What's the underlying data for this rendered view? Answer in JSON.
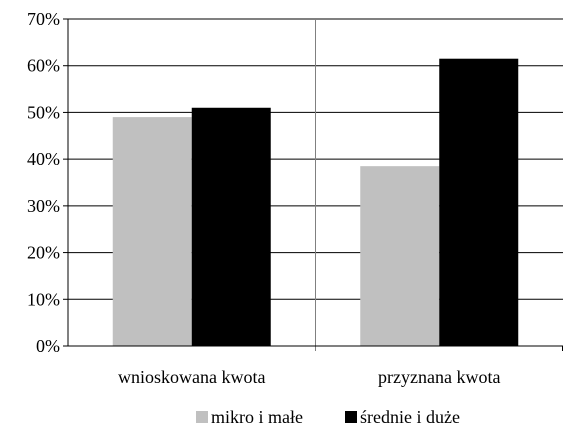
{
  "chart_data": {
    "type": "bar",
    "categories": [
      "wnioskowana kwota",
      "przyznana kwota"
    ],
    "series": [
      {
        "name": "mikro i małe",
        "values": [
          49,
          38.5
        ],
        "color": "#c0c0c0"
      },
      {
        "name": "średnie i duże",
        "values": [
          51,
          61.5
        ],
        "color": "#000000"
      }
    ],
    "title": "",
    "xlabel": "",
    "ylabel": "",
    "ylim": [
      0,
      70
    ],
    "yticks": [
      0,
      10,
      20,
      30,
      40,
      50,
      60,
      70
    ],
    "ytick_labels": [
      "0%",
      "10%",
      "20%",
      "30%",
      "40%",
      "50%",
      "60%",
      "70%"
    ],
    "grid": true,
    "legend_position": "bottom"
  }
}
